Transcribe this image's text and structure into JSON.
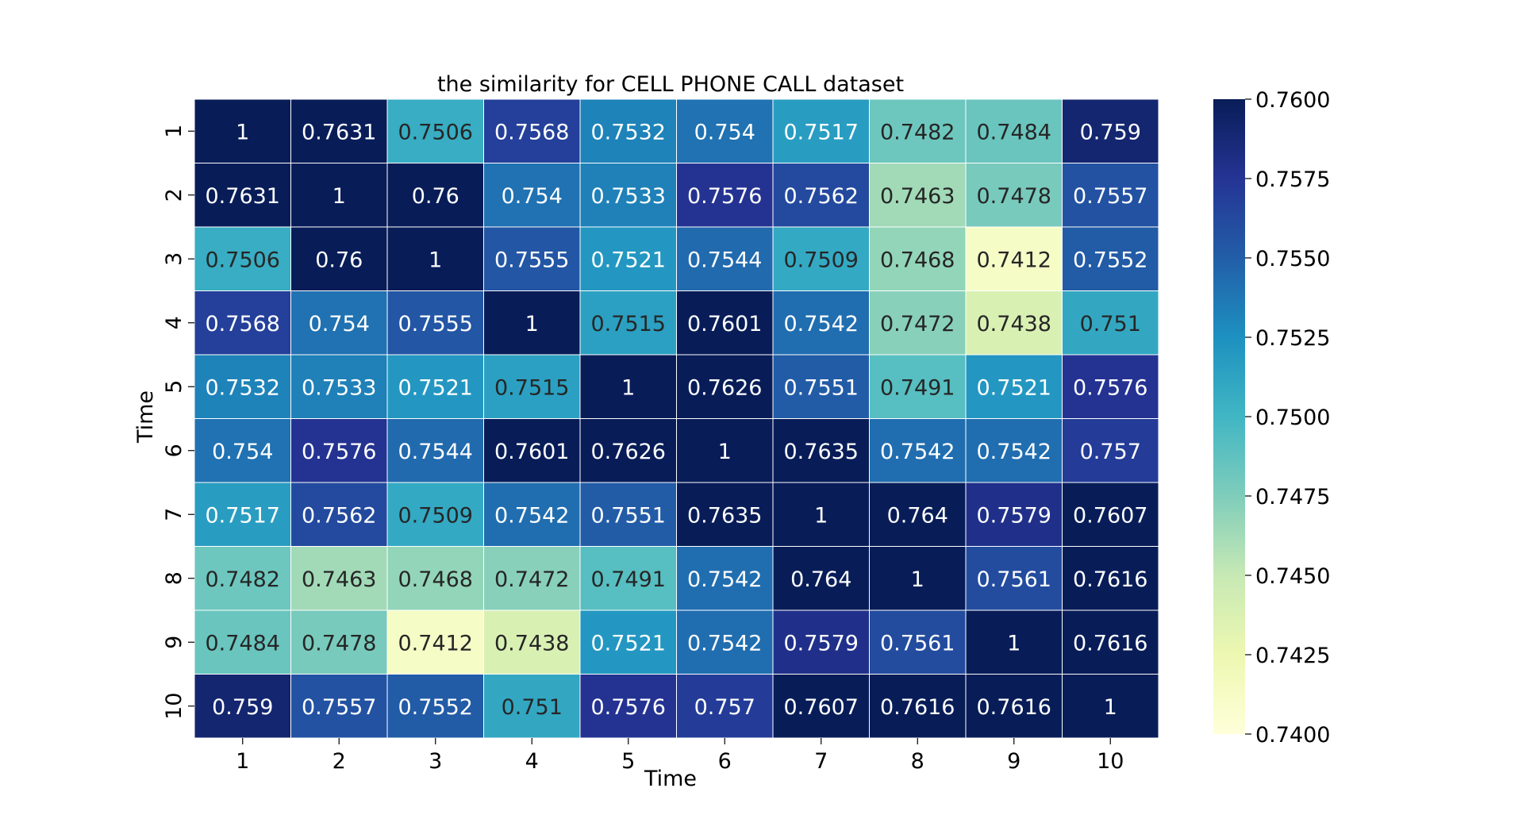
{
  "chart_data": {
    "type": "heatmap",
    "title": "the similarity for CELL PHONE CALL dataset",
    "xlabel": "Time",
    "ylabel": "Time",
    "x_categories": [
      "1",
      "2",
      "3",
      "4",
      "5",
      "6",
      "7",
      "8",
      "9",
      "10"
    ],
    "y_categories": [
      "1",
      "2",
      "3",
      "4",
      "5",
      "6",
      "7",
      "8",
      "9",
      "10"
    ],
    "values": [
      [
        "1",
        "0.7631",
        "0.7506",
        "0.7568",
        "0.7532",
        "0.754",
        "0.7517",
        "0.7482",
        "0.7484",
        "0.759"
      ],
      [
        "0.7631",
        "1",
        "0.76",
        "0.754",
        "0.7533",
        "0.7576",
        "0.7562",
        "0.7463",
        "0.7478",
        "0.7557"
      ],
      [
        "0.7506",
        "0.76",
        "1",
        "0.7555",
        "0.7521",
        "0.7544",
        "0.7509",
        "0.7468",
        "0.7412",
        "0.7552"
      ],
      [
        "0.7568",
        "0.754",
        "0.7555",
        "1",
        "0.7515",
        "0.7601",
        "0.7542",
        "0.7472",
        "0.7438",
        "0.751"
      ],
      [
        "0.7532",
        "0.7533",
        "0.7521",
        "0.7515",
        "1",
        "0.7626",
        "0.7551",
        "0.7491",
        "0.7521",
        "0.7576"
      ],
      [
        "0.754",
        "0.7576",
        "0.7544",
        "0.7601",
        "0.7626",
        "1",
        "0.7635",
        "0.7542",
        "0.7542",
        "0.757"
      ],
      [
        "0.7517",
        "0.7562",
        "0.7509",
        "0.7542",
        "0.7551",
        "0.7635",
        "1",
        "0.764",
        "0.7579",
        "0.7607"
      ],
      [
        "0.7482",
        "0.7463",
        "0.7468",
        "0.7472",
        "0.7491",
        "0.7542",
        "0.764",
        "1",
        "0.7561",
        "0.7616"
      ],
      [
        "0.7484",
        "0.7478",
        "0.7412",
        "0.7438",
        "0.7521",
        "0.7542",
        "0.7579",
        "0.7561",
        "1",
        "0.7616"
      ],
      [
        "0.759",
        "0.7557",
        "0.7552",
        "0.751",
        "0.7576",
        "0.757",
        "0.7607",
        "0.7616",
        "0.7616",
        "1"
      ]
    ],
    "colorbar": {
      "colormap": "YlGnBu",
      "vmin": 0.74,
      "vmax": 0.76,
      "ticks": [
        "0.7400",
        "0.7425",
        "0.7450",
        "0.7475",
        "0.7500",
        "0.7525",
        "0.7550",
        "0.7575",
        "0.7600"
      ]
    },
    "colormap_stops": [
      "#ffffd9",
      "#edf8b1",
      "#c7e9b4",
      "#7fcdbb",
      "#41b6c4",
      "#1d91c0",
      "#225ea8",
      "#253494",
      "#081d58"
    ]
  }
}
